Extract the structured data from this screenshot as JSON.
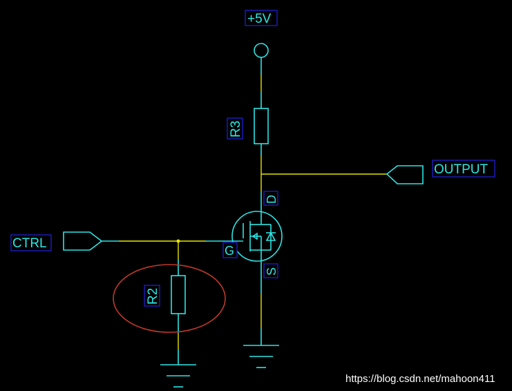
{
  "labels": {
    "vcc": "+5V",
    "r3": "R3",
    "output": "OUTPUT",
    "drain": "D",
    "ctrl": "CTRL",
    "gate": "G",
    "source": "S",
    "r2": "R2"
  },
  "watermark": "https://blog.csdn.net/mahoon411",
  "colors": {
    "background": "#000000",
    "component": "#2ee6e6",
    "wire": "#e6e600",
    "label_border": "#1a1ab8",
    "highlight": "#c0392b"
  }
}
